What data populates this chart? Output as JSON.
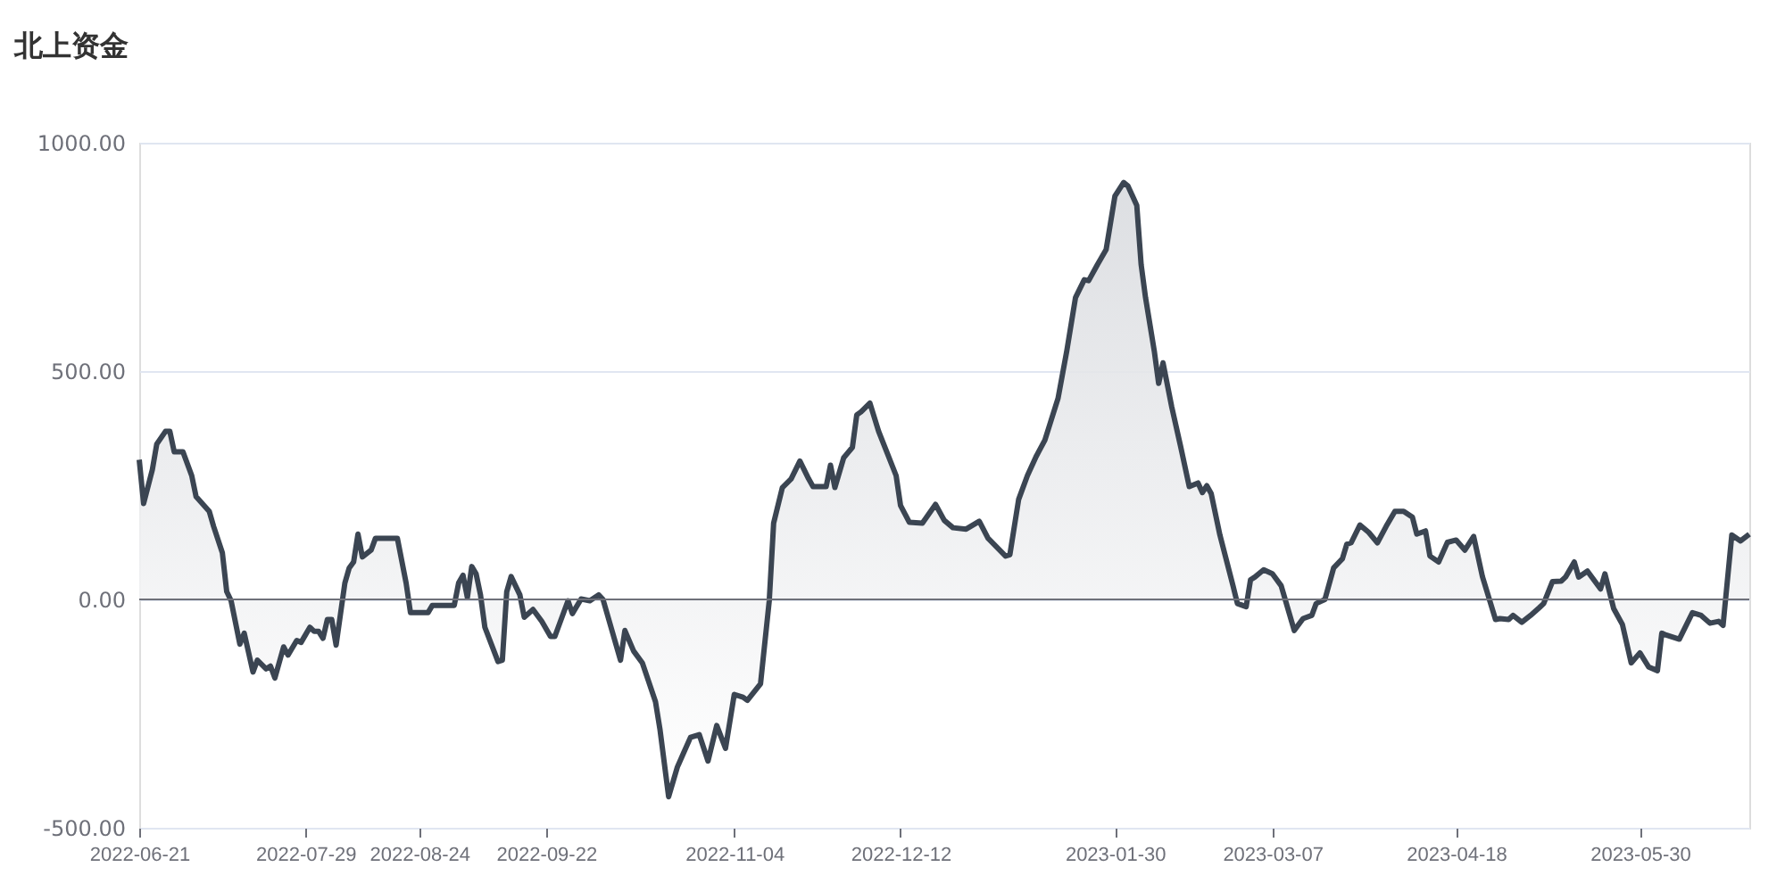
{
  "chart_data": {
    "type": "area",
    "title": "北上资金",
    "x": [
      "2022-06-21",
      "2022-06-22",
      "2022-06-24",
      "2022-06-25",
      "2022-06-27",
      "2022-06-28",
      "2022-06-29",
      "2022-07-01",
      "2022-07-03",
      "2022-07-04",
      "2022-07-07",
      "2022-07-08",
      "2022-07-10",
      "2022-07-11",
      "2022-07-12",
      "2022-07-14",
      "2022-07-15",
      "2022-07-17",
      "2022-07-18",
      "2022-07-20",
      "2022-07-21",
      "2022-07-22",
      "2022-07-24",
      "2022-07-25",
      "2022-07-27",
      "2022-07-28",
      "2022-07-30",
      "2022-07-31",
      "2022-08-01",
      "2022-08-02",
      "2022-08-03",
      "2022-08-04",
      "2022-08-05",
      "2022-08-07",
      "2022-08-08",
      "2022-08-09",
      "2022-08-10",
      "2022-08-11",
      "2022-08-13",
      "2022-08-14",
      "2022-08-19",
      "2022-08-21",
      "2022-08-22",
      "2022-08-26",
      "2022-08-27",
      "2022-09-01",
      "2022-09-02",
      "2022-09-03",
      "2022-09-04",
      "2022-09-05",
      "2022-09-06",
      "2022-09-07",
      "2022-09-08",
      "2022-09-11",
      "2022-09-12",
      "2022-09-13",
      "2022-09-14",
      "2022-09-16",
      "2022-09-17",
      "2022-09-19",
      "2022-09-21",
      "2022-09-23",
      "2022-09-24",
      "2022-09-27",
      "2022-09-28",
      "2022-09-30",
      "2022-10-02",
      "2022-10-04",
      "2022-10-05",
      "2022-10-09",
      "2022-10-10",
      "2022-10-12",
      "2022-10-14",
      "2022-10-17",
      "2022-10-18",
      "2022-10-20",
      "2022-10-22",
      "2022-10-25",
      "2022-10-27",
      "2022-10-29",
      "2022-10-31",
      "2022-11-02",
      "2022-11-04",
      "2022-11-06",
      "2022-11-07",
      "2022-11-10",
      "2022-11-12",
      "2022-11-13",
      "2022-11-15",
      "2022-11-17",
      "2022-11-19",
      "2022-11-21",
      "2022-11-22",
      "2022-11-25",
      "2022-11-26",
      "2022-11-27",
      "2022-11-29",
      "2022-12-01",
      "2022-12-02",
      "2022-12-03",
      "2022-12-05",
      "2022-12-07",
      "2022-12-11",
      "2022-12-12",
      "2022-12-14",
      "2022-12-17",
      "2022-12-20",
      "2022-12-22",
      "2022-12-24",
      "2022-12-27",
      "2022-12-30",
      "2023-01-01",
      "2023-01-05",
      "2023-01-06",
      "2023-01-08",
      "2023-01-10",
      "2023-01-12",
      "2023-01-14",
      "2023-01-17",
      "2023-01-19",
      "2023-01-21",
      "2023-01-23",
      "2023-01-24",
      "2023-01-26",
      "2023-01-28",
      "2023-01-30",
      "2023-02-01",
      "2023-02-02",
      "2023-02-04",
      "2023-02-05",
      "2023-02-06",
      "2023-02-08",
      "2023-02-09",
      "2023-02-10",
      "2023-02-12",
      "2023-02-14",
      "2023-02-16",
      "2023-02-18",
      "2023-02-19",
      "2023-02-20",
      "2023-02-21",
      "2023-02-23",
      "2023-02-26",
      "2023-02-27",
      "2023-03-01",
      "2023-03-02",
      "2023-03-03",
      "2023-03-05",
      "2023-03-07",
      "2023-03-09",
      "2023-03-12",
      "2023-03-14",
      "2023-03-16",
      "2023-03-17",
      "2023-03-19",
      "2023-03-21",
      "2023-03-23",
      "2023-03-24",
      "2023-03-25",
      "2023-03-27",
      "2023-03-29",
      "2023-03-31",
      "2023-04-02",
      "2023-04-04",
      "2023-04-06",
      "2023-04-08",
      "2023-04-09",
      "2023-04-11",
      "2023-04-12",
      "2023-04-14",
      "2023-04-16",
      "2023-04-18",
      "2023-04-20",
      "2023-04-22",
      "2023-04-24",
      "2023-04-27",
      "2023-04-28",
      "2023-04-30",
      "2023-05-01",
      "2023-05-03",
      "2023-05-05",
      "2023-05-07",
      "2023-05-08",
      "2023-05-10",
      "2023-05-12",
      "2023-05-13",
      "2023-05-15",
      "2023-05-16",
      "2023-05-18",
      "2023-05-21",
      "2023-05-22",
      "2023-05-24",
      "2023-05-26",
      "2023-05-28",
      "2023-05-30",
      "2023-06-01",
      "2023-06-03",
      "2023-06-04",
      "2023-06-05",
      "2023-06-08",
      "2023-06-11",
      "2023-06-13",
      "2023-06-15",
      "2023-06-17",
      "2023-06-18",
      "2023-06-20",
      "2023-06-22",
      "2023-06-24"
    ],
    "series": [
      {
        "color": "#3b4552",
        "values": [
          306,
          210,
          284,
          340,
          368,
          368,
          323,
          323,
          271,
          225,
          193,
          160,
          102,
          17,
          -3,
          -98,
          -74,
          -159,
          -133,
          -152,
          -146,
          -172,
          -104,
          -122,
          -90,
          -94,
          -61,
          -70,
          -70,
          -85,
          -44,
          -44,
          -100,
          36,
          69,
          82,
          143,
          93,
          108,
          134,
          134,
          36,
          -29,
          -29,
          -13,
          -13,
          36,
          53,
          4,
          72,
          56,
          10,
          -61,
          -136,
          -133,
          17,
          50,
          10,
          -39,
          -22,
          -48,
          -81,
          -81,
          -3,
          -31,
          1,
          -3,
          10,
          0,
          -133,
          -68,
          -113,
          -139,
          -224,
          -283,
          -432,
          -367,
          -302,
          -296,
          -354,
          -276,
          -326,
          -208,
          -214,
          -221,
          -185,
          -3,
          167,
          245,
          264,
          303,
          264,
          247,
          247,
          294,
          245,
          310,
          333,
          404,
          411,
          430,
          368,
          271,
          206,
          169,
          167,
          208,
          173,
          157,
          154,
          171,
          134,
          95,
          98,
          219,
          271,
          313,
          349,
          440,
          544,
          661,
          700,
          698,
          733,
          766,
          883,
          913,
          905,
          863,
          733,
          661,
          544,
          473,
          518,
          421,
          336,
          247,
          255,
          234,
          249,
          232,
          141,
          30,
          -9,
          -16,
          43,
          49,
          65,
          56,
          30,
          -68,
          -42,
          -35,
          -9,
          0,
          69,
          89,
          121,
          124,
          163,
          147,
          124,
          160,
          193,
          193,
          180,
          143,
          150,
          95,
          82,
          125,
          130,
          108,
          138,
          50,
          -44,
          -42,
          -44,
          -35,
          -50,
          -35,
          -18,
          -9,
          39,
          40,
          49,
          82,
          49,
          62,
          23,
          56,
          -20,
          -55,
          -139,
          -117,
          -148,
          -156,
          -74,
          -78,
          -87,
          -29,
          -35,
          -52,
          -48,
          -57,
          141,
          128,
          143
        ]
      }
    ],
    "xlim": [
      "2022-06-21",
      "2023-06-24"
    ],
    "xticks": [
      {
        "value": "2022-06-21",
        "label": "2022-06-21"
      },
      {
        "value": "2022-07-29",
        "label": "2022-07-29"
      },
      {
        "value": "2022-08-24",
        "label": "2022-08-24"
      },
      {
        "value": "2022-09-22",
        "label": "2022-09-22"
      },
      {
        "value": "2022-11-04",
        "label": "2022-11-04"
      },
      {
        "value": "2022-12-12",
        "label": "2022-12-12"
      },
      {
        "value": "2023-01-30",
        "label": "2023-01-30"
      },
      {
        "value": "2023-03-07",
        "label": "2023-03-07"
      },
      {
        "value": "2023-04-18",
        "label": "2023-04-18"
      },
      {
        "value": "2023-05-30",
        "label": "2023-05-30"
      }
    ],
    "ylim": [
      -500,
      1000
    ],
    "yticks": [
      {
        "value": -500,
        "label": "-500.00"
      },
      {
        "value": 0,
        "label": "0.00"
      },
      {
        "value": 500,
        "label": "500.00"
      },
      {
        "value": 1000,
        "label": "1000.00"
      }
    ],
    "ref_lines": [
      {
        "axis": "y",
        "value": 0,
        "color": "#6e7079"
      }
    ],
    "grid": "y",
    "line_style": "solid",
    "marker": "none"
  }
}
